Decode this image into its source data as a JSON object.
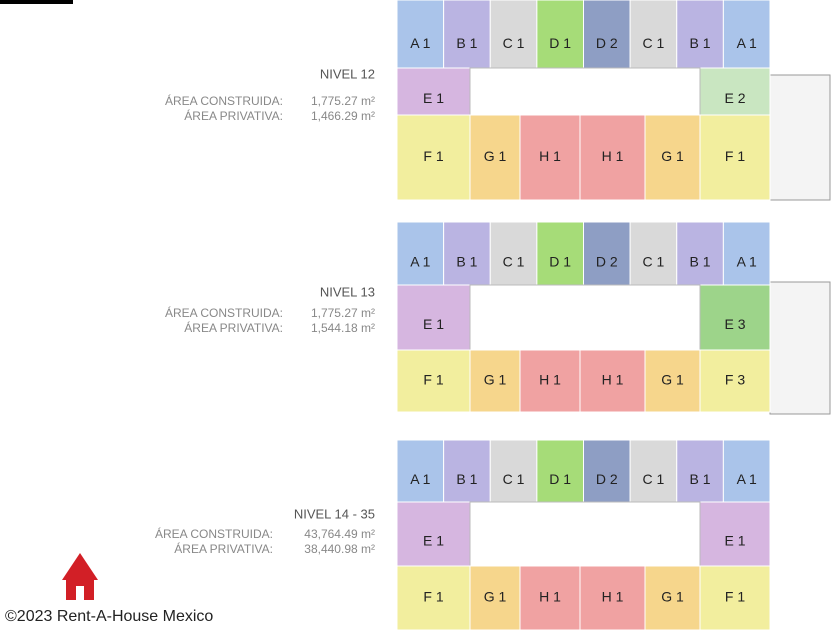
{
  "levels": [
    {
      "title": "NIVEL 12",
      "built_label": "ÁREA CONSTRUIDA:",
      "built_value": "1,775.27 m²",
      "private_label": "ÁREA PRIVATIVA:",
      "private_value": "1,466.29 m²",
      "top": [
        {
          "label": "A 1",
          "color": "#aac4ea"
        },
        {
          "label": "B 1",
          "color": "#bab4e2"
        },
        {
          "label": "C 1",
          "color": "#d9d9d9"
        },
        {
          "label": "D 1",
          "color": "#a6dc78"
        },
        {
          "label": "D 2",
          "color": "#8e9ec4"
        },
        {
          "label": "C 1",
          "color": "#d9d9d9"
        },
        {
          "label": "B 1",
          "color": "#bab4e2"
        },
        {
          "label": "A 1",
          "color": "#aac4ea"
        }
      ],
      "middle": [
        {
          "label": "E 1",
          "color": "#d6b6e0"
        },
        {
          "label": "E 2",
          "color": "#c9e6c1"
        }
      ],
      "bottom": [
        {
          "label": "F 1",
          "color": "#f2ee9e"
        },
        {
          "label": "G 1",
          "color": "#f6d68c"
        },
        {
          "label": "H 1",
          "color": "#f0a2a2"
        },
        {
          "label": "H 1",
          "color": "#f0a2a2"
        },
        {
          "label": "G 1",
          "color": "#f6d68c"
        },
        {
          "label": "F 1",
          "color": "#f2ee9e"
        }
      ]
    },
    {
      "title": "NIVEL 13",
      "built_label": "ÁREA CONSTRUIDA:",
      "built_value": "1,775.27 m²",
      "private_label": "ÁREA PRIVATIVA:",
      "private_value": "1,544.18 m²",
      "top": [
        {
          "label": "A 1",
          "color": "#aac4ea"
        },
        {
          "label": "B 1",
          "color": "#bab4e2"
        },
        {
          "label": "C 1",
          "color": "#d9d9d9"
        },
        {
          "label": "D 1",
          "color": "#a6dc78"
        },
        {
          "label": "D 2",
          "color": "#8e9ec4"
        },
        {
          "label": "C 1",
          "color": "#d9d9d9"
        },
        {
          "label": "B 1",
          "color": "#bab4e2"
        },
        {
          "label": "A 1",
          "color": "#aac4ea"
        }
      ],
      "middle": [
        {
          "label": "E 1",
          "color": "#d6b6e0"
        },
        {
          "label": "E 3",
          "color": "#9dd48a"
        }
      ],
      "bottom": [
        {
          "label": "F 1",
          "color": "#f2ee9e"
        },
        {
          "label": "G 1",
          "color": "#f6d68c"
        },
        {
          "label": "H 1",
          "color": "#f0a2a2"
        },
        {
          "label": "H 1",
          "color": "#f0a2a2"
        },
        {
          "label": "G 1",
          "color": "#f6d68c"
        },
        {
          "label": "F 3",
          "color": "#f2ee9e"
        }
      ]
    },
    {
      "title": "NIVEL 14 - 35",
      "built_label": "ÁREA CONSTRUIDA:",
      "built_value": "43,764.49 m²",
      "private_label": "ÁREA PRIVATIVA:",
      "private_value": "38,440.98 m²",
      "top": [
        {
          "label": "A 1",
          "color": "#aac4ea"
        },
        {
          "label": "B 1",
          "color": "#bab4e2"
        },
        {
          "label": "C 1",
          "color": "#d9d9d9"
        },
        {
          "label": "D 1",
          "color": "#a6dc78"
        },
        {
          "label": "D 2",
          "color": "#8e9ec4"
        },
        {
          "label": "C 1",
          "color": "#d9d9d9"
        },
        {
          "label": "B 1",
          "color": "#bab4e2"
        },
        {
          "label": "A 1",
          "color": "#aac4ea"
        }
      ],
      "middle": [
        {
          "label": "E 1",
          "color": "#d6b6e0"
        },
        {
          "label": "E 1",
          "color": "#d6b6e0"
        }
      ],
      "bottom": [
        {
          "label": "F 1",
          "color": "#f2ee9e"
        },
        {
          "label": "G 1",
          "color": "#f6d68c"
        },
        {
          "label": "H 1",
          "color": "#f0a2a2"
        },
        {
          "label": "H 1",
          "color": "#f0a2a2"
        },
        {
          "label": "G 1",
          "color": "#f6d68c"
        },
        {
          "label": "F 1",
          "color": "#f2ee9e"
        }
      ]
    }
  ],
  "watermark": "©2023 Rent-A-House Mexico"
}
